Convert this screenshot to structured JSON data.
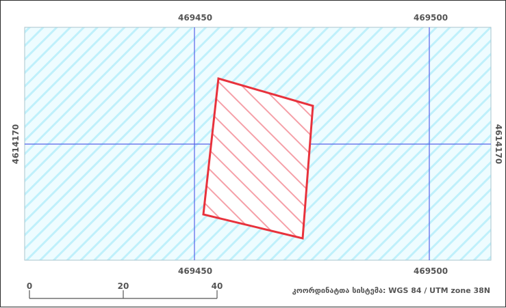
{
  "map": {
    "grid": {
      "x_labels": [
        "469450",
        "469500"
      ],
      "y_label": "4614170"
    },
    "colors": {
      "hatch": "#bff0fb",
      "background_tint": "#eefcff",
      "grid_line": "#5560e8",
      "parcel_stroke": "#e8323c",
      "parcel_hatch": "#f5a0a8",
      "text": "#555555"
    },
    "scale_bar": {
      "labels": [
        "0",
        "20",
        "40"
      ]
    },
    "crs_label": "კოორდინატთა სისტემა: WGS 84 / UTM zone 38N"
  }
}
